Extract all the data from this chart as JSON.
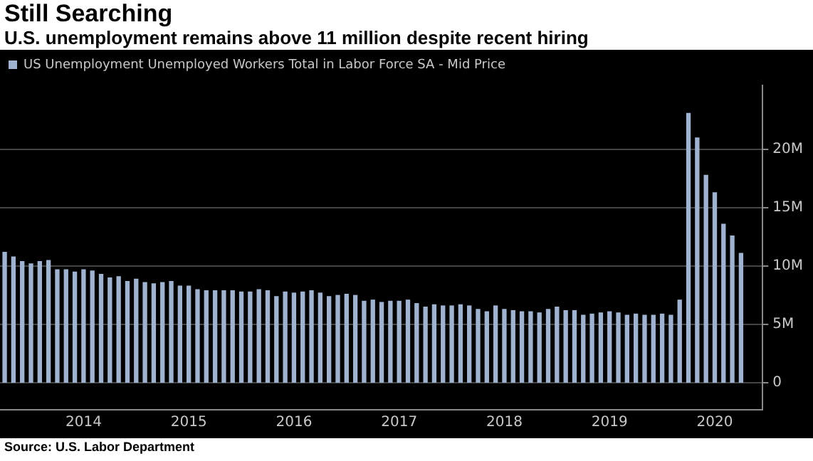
{
  "chart_data": {
    "type": "bar",
    "title": "Still Searching",
    "subtitle": "U.S. unemployment remains above 11 million despite recent hiring",
    "annotations": [
      "Source: U.S. Labor Department"
    ],
    "x": [
      "2013-10",
      "2013-11",
      "2013-12",
      "2014-01",
      "2014-02",
      "2014-03",
      "2014-04",
      "2014-05",
      "2014-06",
      "2014-07",
      "2014-08",
      "2014-09",
      "2014-10",
      "2014-11",
      "2014-12",
      "2015-01",
      "2015-02",
      "2015-03",
      "2015-04",
      "2015-05",
      "2015-06",
      "2015-07",
      "2015-08",
      "2015-09",
      "2015-10",
      "2015-11",
      "2015-12",
      "2016-01",
      "2016-02",
      "2016-03",
      "2016-04",
      "2016-05",
      "2016-06",
      "2016-07",
      "2016-08",
      "2016-09",
      "2016-10",
      "2016-11",
      "2016-12",
      "2017-01",
      "2017-02",
      "2017-03",
      "2017-04",
      "2017-05",
      "2017-06",
      "2017-07",
      "2017-08",
      "2017-09",
      "2017-10",
      "2017-11",
      "2017-12",
      "2018-01",
      "2018-02",
      "2018-03",
      "2018-04",
      "2018-05",
      "2018-06",
      "2018-07",
      "2018-08",
      "2018-09",
      "2018-10",
      "2018-11",
      "2018-12",
      "2019-01",
      "2019-02",
      "2019-03",
      "2019-04",
      "2019-05",
      "2019-06",
      "2019-07",
      "2019-08",
      "2019-09",
      "2019-10",
      "2019-11",
      "2019-12",
      "2020-01",
      "2020-02",
      "2020-03",
      "2020-04",
      "2020-05",
      "2020-06",
      "2020-07",
      "2020-08",
      "2020-09",
      "2020-10"
    ],
    "series": [
      {
        "name": "US Unemployment Unemployed Workers Total in Labor Force SA - Mid Price",
        "color": "#9fb3d1",
        "values": [
          11.2,
          10.8,
          10.4,
          10.2,
          10.4,
          10.5,
          9.7,
          9.7,
          9.5,
          9.7,
          9.6,
          9.3,
          9.0,
          9.1,
          8.7,
          8.9,
          8.6,
          8.5,
          8.6,
          8.7,
          8.3,
          8.3,
          8.0,
          7.9,
          7.9,
          7.9,
          7.9,
          7.8,
          7.8,
          8.0,
          7.9,
          7.4,
          7.8,
          7.7,
          7.8,
          7.9,
          7.7,
          7.4,
          7.5,
          7.6,
          7.5,
          7.0,
          7.1,
          6.9,
          7.0,
          7.0,
          7.1,
          6.8,
          6.5,
          6.7,
          6.6,
          6.6,
          6.7,
          6.6,
          6.3,
          6.1,
          6.6,
          6.3,
          6.2,
          6.1,
          6.1,
          6.0,
          6.3,
          6.5,
          6.2,
          6.2,
          5.8,
          5.9,
          6.0,
          6.1,
          6.0,
          5.8,
          5.9,
          5.8,
          5.8,
          5.9,
          5.8,
          7.1,
          23.1,
          21.0,
          17.8,
          16.3,
          13.6,
          12.6,
          11.1
        ]
      }
    ],
    "xlim": [
      "2013-09-15",
      "2020-12-15"
    ],
    "xticks": [
      {
        "value": "2014-07",
        "label": "2014"
      },
      {
        "value": "2015-07",
        "label": "2015"
      },
      {
        "value": "2016-07",
        "label": "2016"
      },
      {
        "value": "2017-07",
        "label": "2017"
      },
      {
        "value": "2018-07",
        "label": "2018"
      },
      {
        "value": "2019-07",
        "label": "2019"
      },
      {
        "value": "2020-07",
        "label": "2020"
      }
    ],
    "ylim": [
      -2.3,
      25.5
    ],
    "yticks": [
      {
        "value": 0,
        "label": "0"
      },
      {
        "value": 5,
        "label": "5M"
      },
      {
        "value": 10,
        "label": "10M"
      },
      {
        "value": 15,
        "label": "15M"
      },
      {
        "value": 20,
        "label": "20M"
      }
    ],
    "grid": "y",
    "legend": "top left"
  }
}
